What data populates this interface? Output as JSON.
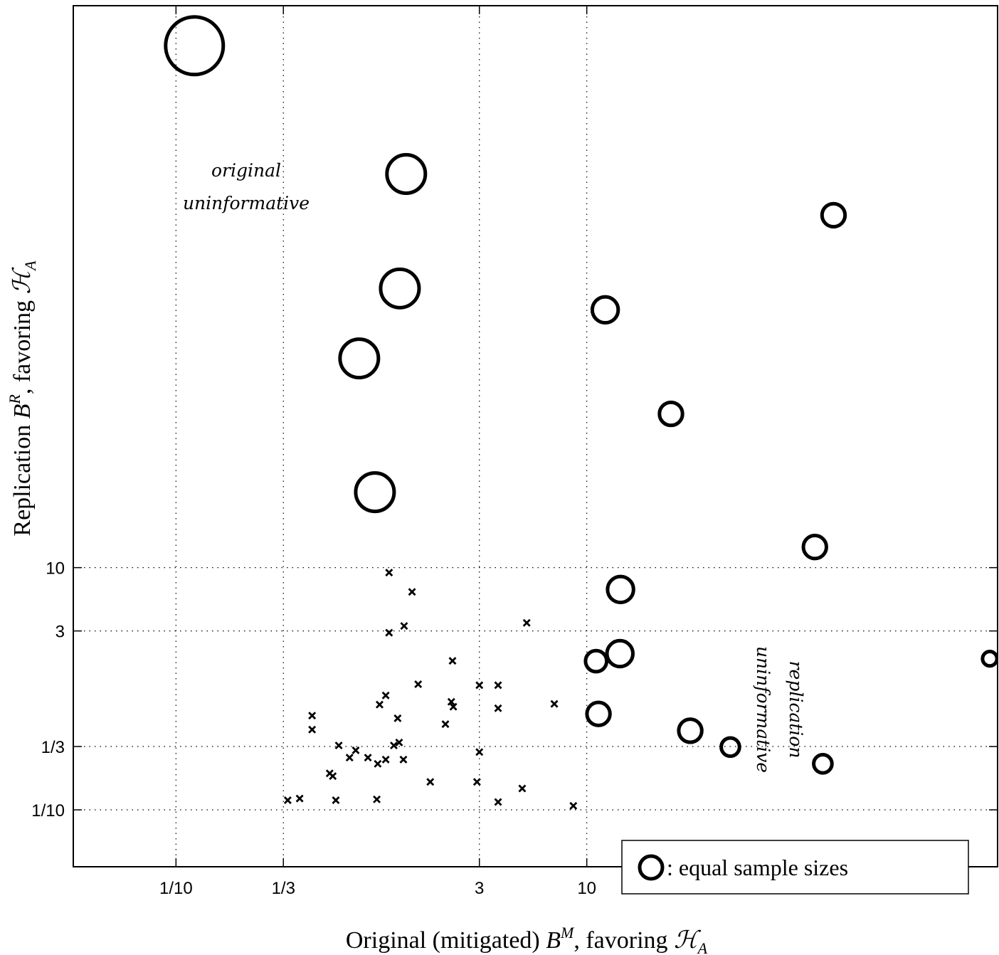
{
  "chart_data": {
    "type": "scatter",
    "xlabel": "Original (mitigated) B^M, favoring ℋ_A",
    "xlabel_parts": {
      "pre": "Original (mitigated) ",
      "sym": "B",
      "sup": "M",
      "post": ", favoring ",
      "cal": "ℋ",
      "sub": "A"
    },
    "ylabel": "Replication B^R, favoring ℋ_A",
    "ylabel_parts": {
      "pre": "Replication ",
      "sym": "B",
      "sup": "R",
      "post": ", favoring ",
      "cal": "ℋ",
      "sub": "A"
    },
    "x_scale": "log",
    "y_scale": "log",
    "xlim_log10": [
      -1.5,
      3.0
    ],
    "ylim_log10": [
      -1.47,
      5.64
    ],
    "x_ticks": [
      {
        "value": 0.1,
        "label": "1/10"
      },
      {
        "value": 0.3333,
        "label": "1/3"
      },
      {
        "value": 3,
        "label": "3"
      },
      {
        "value": 10,
        "label": "10"
      }
    ],
    "y_ticks": [
      {
        "value": 0.1,
        "label": "1/10"
      },
      {
        "value": 0.3333,
        "label": "1/3"
      },
      {
        "value": 3,
        "label": "3"
      },
      {
        "value": 10,
        "label": "10"
      }
    ],
    "grid": "dotted lines at tick values",
    "annotations": [
      {
        "text_lines": [
          "original",
          "uninformative"
        ],
        "region": "between x = 1/3 and x = 3, upper area"
      },
      {
        "text_lines": [
          "replication",
          "uninformative"
        ],
        "region": "between y = 1/3 and y = 3, right side, rotated"
      }
    ],
    "legend": {
      "marker": "circle",
      "label": ": equal sample sizes",
      "placement": "bottom-right"
    },
    "series": [
      {
        "marker": "circle",
        "description_of_size": "circle size encodes sample size",
        "points": [
          {
            "x": 0.123,
            "y": 204000,
            "size": 3.0
          },
          {
            "x": 1.32,
            "y": 17800,
            "size": 2.0
          },
          {
            "x": 1.23,
            "y": 2020,
            "size": 2.0
          },
          {
            "x": 0.78,
            "y": 534,
            "size": 2.0
          },
          {
            "x": 0.93,
            "y": 42,
            "size": 2.0
          },
          {
            "x": 12.3,
            "y": 1345,
            "size": 1.35
          },
          {
            "x": 25.7,
            "y": 186,
            "size": 1.2
          },
          {
            "x": 159,
            "y": 8130,
            "size": 1.2
          },
          {
            "x": 129,
            "y": 14.8,
            "size": 1.2
          },
          {
            "x": 14.6,
            "y": 6.6,
            "size": 1.35
          },
          {
            "x": 14.5,
            "y": 1.95,
            "size": 1.35
          },
          {
            "x": 11.1,
            "y": 1.69,
            "size": 1.1
          },
          {
            "x": 11.4,
            "y": 0.62,
            "size": 1.2
          },
          {
            "x": 31.9,
            "y": 0.45,
            "size": 1.2
          },
          {
            "x": 50,
            "y": 0.33,
            "size": 0.95
          },
          {
            "x": 141,
            "y": 0.24,
            "size": 0.95
          },
          {
            "x": 916,
            "y": 1.77,
            "size": 0.75
          }
        ]
      },
      {
        "marker": "x",
        "points": [
          {
            "x": 1.09,
            "y": 9.1
          },
          {
            "x": 1.41,
            "y": 6.3
          },
          {
            "x": 1.09,
            "y": 2.9
          },
          {
            "x": 1.29,
            "y": 3.3
          },
          {
            "x": 5.1,
            "y": 3.5
          },
          {
            "x": 2.22,
            "y": 1.7
          },
          {
            "x": 1.51,
            "y": 1.09
          },
          {
            "x": 3.0,
            "y": 1.07
          },
          {
            "x": 3.7,
            "y": 1.07
          },
          {
            "x": 1.05,
            "y": 0.88
          },
          {
            "x": 0.98,
            "y": 0.74
          },
          {
            "x": 2.19,
            "y": 0.78
          },
          {
            "x": 2.24,
            "y": 0.71
          },
          {
            "x": 3.7,
            "y": 0.69
          },
          {
            "x": 6.95,
            "y": 0.75
          },
          {
            "x": 0.46,
            "y": 0.6
          },
          {
            "x": 1.2,
            "y": 0.57
          },
          {
            "x": 2.05,
            "y": 0.51
          },
          {
            "x": 0.46,
            "y": 0.46
          },
          {
            "x": 1.22,
            "y": 0.36
          },
          {
            "x": 0.62,
            "y": 0.34
          },
          {
            "x": 1.15,
            "y": 0.34
          },
          {
            "x": 0.75,
            "y": 0.31
          },
          {
            "x": 3.0,
            "y": 0.3
          },
          {
            "x": 0.7,
            "y": 0.27
          },
          {
            "x": 0.86,
            "y": 0.27
          },
          {
            "x": 1.05,
            "y": 0.26
          },
          {
            "x": 1.28,
            "y": 0.26
          },
          {
            "x": 0.96,
            "y": 0.24
          },
          {
            "x": 0.56,
            "y": 0.2
          },
          {
            "x": 0.58,
            "y": 0.19
          },
          {
            "x": 1.73,
            "y": 0.17
          },
          {
            "x": 2.92,
            "y": 0.17
          },
          {
            "x": 4.85,
            "y": 0.15
          },
          {
            "x": 0.35,
            "y": 0.12
          },
          {
            "x": 0.4,
            "y": 0.124
          },
          {
            "x": 0.6,
            "y": 0.12
          },
          {
            "x": 0.95,
            "y": 0.122
          },
          {
            "x": 3.7,
            "y": 0.116
          },
          {
            "x": 8.6,
            "y": 0.108
          }
        ]
      }
    ]
  }
}
